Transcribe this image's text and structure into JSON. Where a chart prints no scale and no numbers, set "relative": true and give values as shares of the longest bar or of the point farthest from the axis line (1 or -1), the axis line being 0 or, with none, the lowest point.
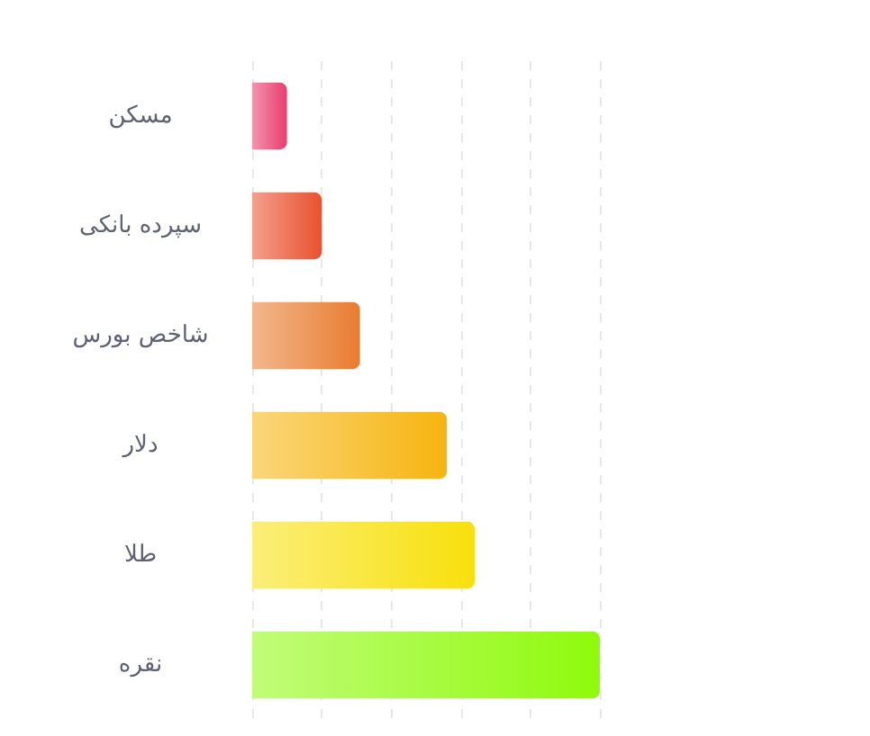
{
  "chart_data": {
    "type": "bar",
    "orientation": "horizontal",
    "relative": true,
    "grid": "x",
    "categories": [
      "مسکن",
      "سپرده بانکی",
      "شاخص بورس",
      "دلار",
      "طلا",
      "نقره"
    ],
    "values": [
      0.1,
      0.2,
      0.31,
      0.56,
      0.64,
      1
    ],
    "colors": [
      "#ea3d6e",
      "#e9512f",
      "#e97c30",
      "#f6b40f",
      "#f8e00c",
      "#8ffa0c"
    ]
  }
}
